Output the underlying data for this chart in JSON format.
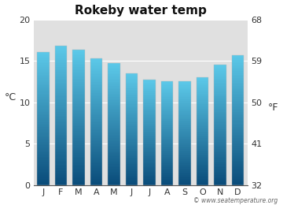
{
  "title": "Rokeby water temp",
  "months": [
    "J",
    "F",
    "M",
    "A",
    "M",
    "J",
    "J",
    "A",
    "S",
    "O",
    "N",
    "D"
  ],
  "values_c": [
    16.1,
    16.8,
    16.3,
    15.3,
    14.7,
    13.5,
    12.7,
    12.5,
    12.5,
    13.0,
    14.5,
    15.7
  ],
  "ylim_c": [
    0,
    20
  ],
  "yticks_c": [
    0,
    5,
    10,
    15,
    20
  ],
  "yticks_f": [
    32,
    41,
    50,
    59,
    68
  ],
  "ylabel_left": "°C",
  "ylabel_right": "°F",
  "bar_color_top": "#5BC8E8",
  "bar_color_bottom": "#0A4C7A",
  "bg_color": "#E0E0E0",
  "fig_bg_color": "#ffffff",
  "grid_color": "#ffffff",
  "watermark": "© www.seatemperature.org",
  "title_fontsize": 11,
  "tick_fontsize": 8,
  "label_fontsize": 9,
  "bar_width": 0.7
}
